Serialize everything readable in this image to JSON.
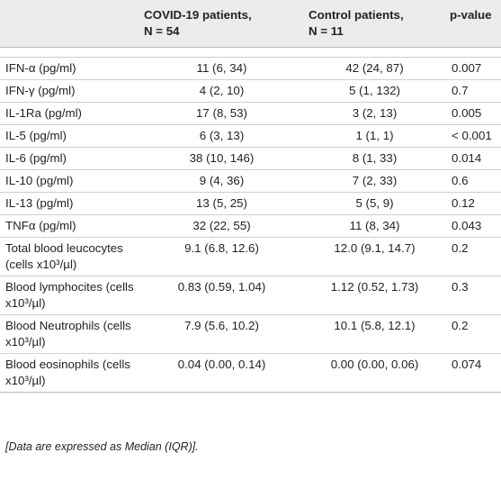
{
  "header": {
    "col1": "",
    "col2_line1": "COVID-19 patients,",
    "col2_line2": "N = 54",
    "col3_line1": "Control patients,",
    "col3_line2": "N = 11",
    "col4": "p-value"
  },
  "rows": [
    {
      "label": "IFN-α (pg/ml)",
      "covid": "11 (6, 34)",
      "control": "42 (24, 87)",
      "p": "0.007"
    },
    {
      "label": "IFN-γ (pg/ml)",
      "covid": "4 (2, 10)",
      "control": "5 (1, 132)",
      "p": "0.7"
    },
    {
      "label": "IL-1Ra (pg/ml)",
      "covid": "17 (8, 53)",
      "control": "3 (2, 13)",
      "p": "0.005"
    },
    {
      "label": "IL-5 (pg/ml)",
      "covid": "6 (3, 13)",
      "control": "1 (1, 1)",
      "p": "< 0.001"
    },
    {
      "label": "IL-6 (pg/ml)",
      "covid": "38 (10, 146)",
      "control": "8 (1, 33)",
      "p": "0.014"
    },
    {
      "label": "IL-10 (pg/ml)",
      "covid": "9 (4, 36)",
      "control": "7 (2, 33)",
      "p": "0.6"
    },
    {
      "label": "IL-13 (pg/ml)",
      "covid": "13 (5, 25)",
      "control": "5 (5, 9)",
      "p": "0.12"
    },
    {
      "label": "TNFα (pg/ml)",
      "covid": "32 (22, 55)",
      "control": "11 (8, 34)",
      "p": "0.043"
    },
    {
      "label": "Total blood leucocytes (cells x10³/µl)",
      "covid": "9.1 (6.8, 12.6)",
      "control": "12.0 (9.1, 14.7)",
      "p": "0.2"
    },
    {
      "label": "Blood lymphocites (cells x10³/µl)",
      "covid": "0.83 (0.59, 1.04)",
      "control": "1.12 (0.52, 1.73)",
      "p": "0.3"
    },
    {
      "label": "Blood Neutrophils (cells x10³/µl)",
      "covid": "7.9 (5.6, 10.2)",
      "control": "10.1 (5.8, 12.1)",
      "p": "0.2"
    },
    {
      "label": "Blood eosinophils (cells x10³/µl)",
      "covid": "0.04 (0.00, 0.14)",
      "control": "0.00 (0.00, 0.06)",
      "p": "0.074"
    }
  ],
  "footnote": "[Data are expressed as Median (IQR)]."
}
